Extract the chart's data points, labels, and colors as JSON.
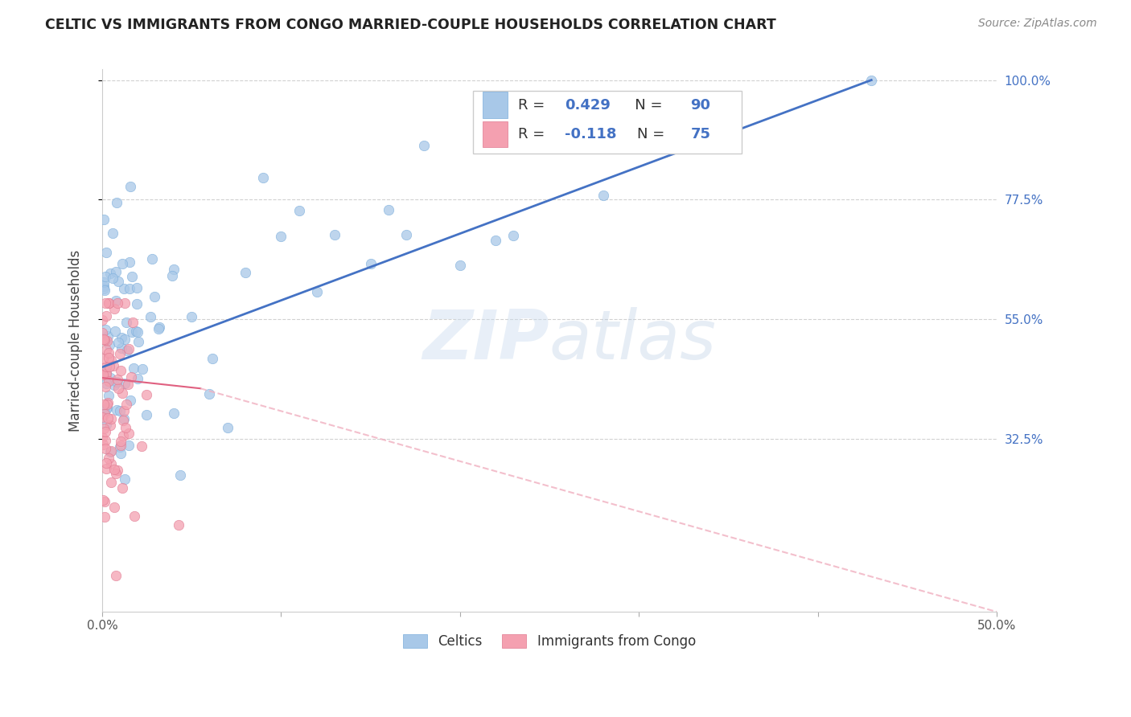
{
  "title": "CELTIC VS IMMIGRANTS FROM CONGO MARRIED-COUPLE HOUSEHOLDS CORRELATION CHART",
  "source": "Source: ZipAtlas.com",
  "ylabel": "Married-couple Households",
  "xlim": [
    0.0,
    0.5
  ],
  "ylim": [
    0.0,
    1.02
  ],
  "color_celtic": "#a8c8e8",
  "color_congo": "#f4a0b0",
  "trendline_celtic_color": "#4472c4",
  "trendline_congo_color": "#e06080",
  "trendline_congo_dash_color": "#f0b0c0",
  "watermark_color": "#ddeeff",
  "legend_text_color": "#4472c4",
  "legend_label_color": "#333333",
  "title_color": "#222222",
  "source_color": "#888888",
  "ytick_color": "#4472c4",
  "xtick_color": "#555555",
  "grid_color": "#cccccc"
}
